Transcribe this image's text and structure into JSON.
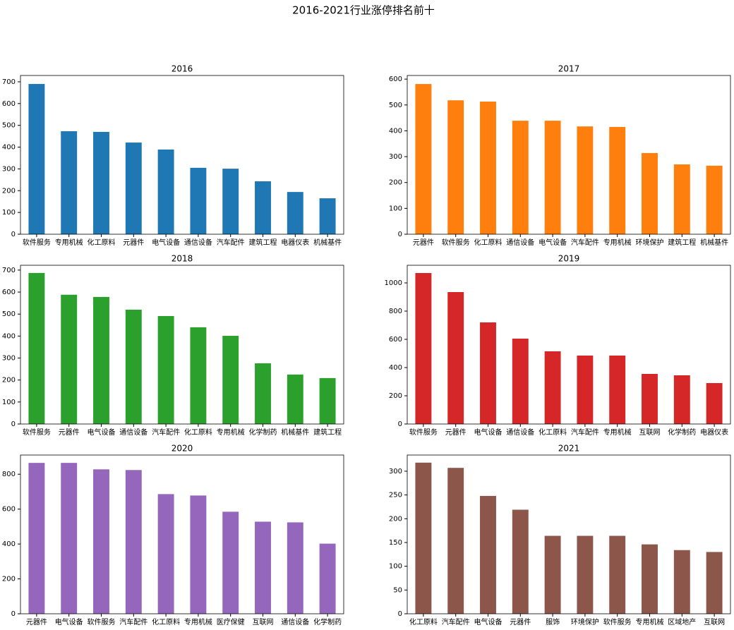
{
  "title": "2016-2021行业涨停排名前十",
  "chart_data": [
    {
      "type": "bar",
      "title": "2016",
      "color": "#1f77b4",
      "categories": [
        "软件服务",
        "专用机械",
        "化工原料",
        "元器件",
        "电气设备",
        "通信设备",
        "汽车配件",
        "建筑工程",
        "电器仪表",
        "机械基件"
      ],
      "values": [
        690,
        473,
        470,
        421,
        389,
        305,
        301,
        243,
        194,
        165
      ],
      "ylim": [
        0,
        729
      ],
      "yticks": [
        0,
        100,
        200,
        300,
        400,
        500,
        600,
        700
      ]
    },
    {
      "type": "bar",
      "title": "2017",
      "color": "#ff7f0e",
      "categories": [
        "元器件",
        "软件服务",
        "化工原料",
        "通信设备",
        "电气设备",
        "汽车配件",
        "专用机械",
        "环境保护",
        "建筑工程",
        "机械基件"
      ],
      "values": [
        581,
        518,
        513,
        439,
        439,
        417,
        415,
        314,
        270,
        265
      ],
      "ylim": [
        0,
        614
      ],
      "yticks": [
        0,
        100,
        200,
        300,
        400,
        500,
        600
      ]
    },
    {
      "type": "bar",
      "title": "2018",
      "color": "#2ca02c",
      "categories": [
        "软件服务",
        "元器件",
        "电气设备",
        "通信设备",
        "汽车配件",
        "化工原料",
        "专用机械",
        "化学制药",
        "机械基件",
        "建筑工程"
      ],
      "values": [
        687,
        588,
        578,
        520,
        491,
        440,
        401,
        276,
        225,
        209
      ],
      "ylim": [
        0,
        722
      ],
      "yticks": [
        0,
        100,
        200,
        300,
        400,
        500,
        600,
        700
      ]
    },
    {
      "type": "bar",
      "title": "2019",
      "color": "#d62728",
      "categories": [
        "软件服务",
        "元器件",
        "电气设备",
        "通信设备",
        "化工原料",
        "汽车配件",
        "专用机械",
        "互联网",
        "化学制药",
        "电器仪表"
      ],
      "values": [
        1070,
        935,
        720,
        605,
        515,
        485,
        485,
        355,
        345,
        290
      ],
      "ylim": [
        0,
        1125
      ],
      "yticks": [
        0,
        200,
        400,
        600,
        800,
        1000
      ]
    },
    {
      "type": "bar",
      "title": "2020",
      "color": "#9467bd",
      "categories": [
        "元器件",
        "电气设备",
        "软件服务",
        "汽车配件",
        "化工原料",
        "专用机械",
        "医疗保健",
        "互联网",
        "通信设备",
        "化学制药"
      ],
      "values": [
        865,
        865,
        828,
        824,
        686,
        678,
        585,
        528,
        524,
        402
      ],
      "ylim": [
        0,
        910
      ],
      "yticks": [
        0,
        200,
        400,
        600,
        800
      ]
    },
    {
      "type": "bar",
      "title": "2021",
      "color": "#8c564b",
      "categories": [
        "化工原料",
        "汽车配件",
        "电气设备",
        "元器件",
        "服饰",
        "环境保护",
        "软件服务",
        "专用机械",
        "区域地产",
        "互联网"
      ],
      "values": [
        318,
        307,
        248,
        219,
        164,
        164,
        164,
        146,
        134,
        130
      ],
      "ylim": [
        0,
        334
      ],
      "yticks": [
        0,
        50,
        100,
        150,
        200,
        250,
        300
      ]
    }
  ]
}
